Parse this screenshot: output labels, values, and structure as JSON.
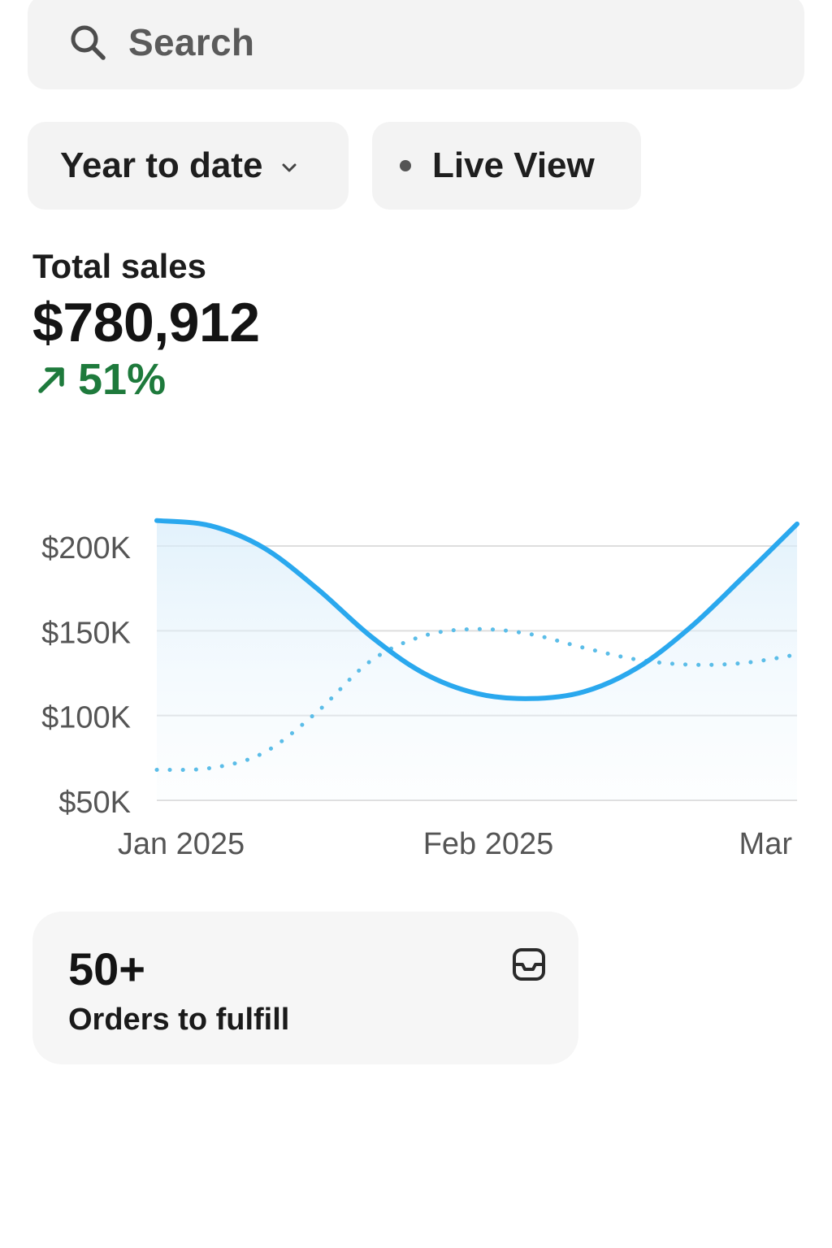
{
  "search": {
    "placeholder": "Search",
    "icon": "search-icon"
  },
  "filters": {
    "date_range": {
      "label": "Year to date",
      "icon": "chevron-down-icon"
    },
    "live_view": {
      "label": "Live View",
      "icon": "dot-icon"
    }
  },
  "total_sales": {
    "label": "Total sales",
    "value": "$780,912",
    "change": "51%",
    "change_icon": "arrow-up-right-icon",
    "change_color": "#1e7a3c"
  },
  "chart_data": {
    "type": "line",
    "x_labels": [
      "Jan 2025",
      "Feb 2025",
      "Mar"
    ],
    "y_ticks": [
      {
        "value": 200000,
        "label": "$200K"
      },
      {
        "value": 150000,
        "label": "$150K"
      },
      {
        "value": 100000,
        "label": "$100K"
      },
      {
        "value": 50000,
        "label": "$50K"
      }
    ],
    "ylim": [
      50000,
      215000
    ],
    "grid": true,
    "series": [
      {
        "style": "solid",
        "color": "#2aa8ee",
        "values": [
          215000,
          212000,
          199000,
          175000,
          147000,
          125000,
          113000,
          110000,
          114000,
          128000,
          152000,
          182000,
          213000
        ]
      },
      {
        "style": "dotted",
        "color": "#5bbde8",
        "values": [
          68000,
          69000,
          78000,
          102000,
          132000,
          147000,
          151000,
          148000,
          140000,
          133000,
          130000,
          131000,
          136000
        ]
      }
    ]
  },
  "orders": {
    "count": "50+",
    "label": "Orders to fulfill",
    "icon": "inbox-icon"
  }
}
